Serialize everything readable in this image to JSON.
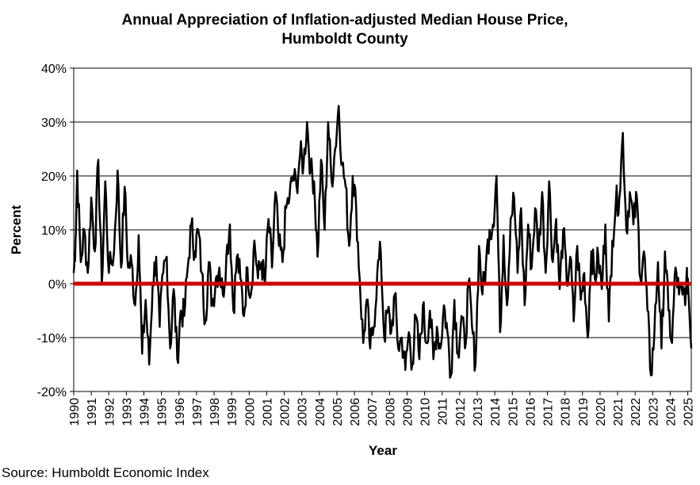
{
  "chart_data": {
    "type": "line",
    "title_line1": "Annual Appreciation of Inflation-adjusted Median House Price,",
    "title_line2": "Humboldt County",
    "xlabel": "Year",
    "ylabel": "Percent",
    "source": "Source: Humboldt Economic Index",
    "xlim": [
      1990,
      2025.2
    ],
    "ylim": [
      -20,
      40
    ],
    "y_ticks": [
      -20,
      -10,
      0,
      10,
      20,
      30,
      40
    ],
    "y_tick_labels": [
      "-20%",
      "-10%",
      "0%",
      "10%",
      "20%",
      "30%",
      "40%"
    ],
    "x_tick_labels": [
      "1990",
      "1991",
      "1992",
      "1993",
      "1994",
      "1995",
      "1996",
      "1997",
      "1998",
      "1999",
      "2000",
      "2001",
      "2002",
      "2003",
      "2004",
      "2005",
      "2006",
      "2007",
      "2008",
      "2009",
      "2010",
      "2011",
      "2012",
      "2013",
      "2014",
      "2015",
      "2016",
      "2017",
      "2018",
      "2019",
      "2020",
      "2021",
      "2022",
      "2023",
      "2024",
      "2025"
    ],
    "grid": true,
    "series_color": "#000000",
    "zero_line_color": "#cc0000",
    "anchors": [
      [
        1990.0,
        2
      ],
      [
        1990.1,
        8
      ],
      [
        1990.2,
        21
      ],
      [
        1990.4,
        4
      ],
      [
        1990.6,
        10
      ],
      [
        1990.8,
        2
      ],
      [
        1991.0,
        16
      ],
      [
        1991.2,
        6
      ],
      [
        1991.4,
        23
      ],
      [
        1991.6,
        0
      ],
      [
        1991.8,
        19
      ],
      [
        1992.0,
        2
      ],
      [
        1992.3,
        6
      ],
      [
        1992.5,
        21
      ],
      [
        1992.7,
        3
      ],
      [
        1992.9,
        18
      ],
      [
        1993.1,
        3
      ],
      [
        1993.3,
        4
      ],
      [
        1993.5,
        -4
      ],
      [
        1993.7,
        9
      ],
      [
        1993.9,
        -13
      ],
      [
        1994.1,
        -3
      ],
      [
        1994.3,
        -15
      ],
      [
        1994.5,
        0
      ],
      [
        1994.7,
        5
      ],
      [
        1994.9,
        -8
      ],
      [
        1995.1,
        2
      ],
      [
        1995.3,
        5
      ],
      [
        1995.5,
        -12
      ],
      [
        1995.7,
        -1
      ],
      [
        1995.9,
        -14
      ],
      [
        1996.1,
        -5
      ],
      [
        1996.3,
        -6
      ],
      [
        1996.5,
        3
      ],
      [
        1996.7,
        11
      ],
      [
        1996.9,
        6
      ],
      [
        1997.1,
        10
      ],
      [
        1997.3,
        2
      ],
      [
        1997.5,
        -7
      ],
      [
        1997.7,
        4
      ],
      [
        1997.9,
        -4
      ],
      [
        1998.1,
        1
      ],
      [
        1998.3,
        3
      ],
      [
        1998.5,
        -2
      ],
      [
        1998.7,
        5
      ],
      [
        1998.9,
        11
      ],
      [
        1999.1,
        -5
      ],
      [
        1999.3,
        5
      ],
      [
        1999.5,
        1
      ],
      [
        1999.7,
        -6
      ],
      [
        1999.9,
        3
      ],
      [
        2000.1,
        -2
      ],
      [
        2000.3,
        8
      ],
      [
        2000.5,
        1
      ],
      [
        2000.7,
        4
      ],
      [
        2000.9,
        0
      ],
      [
        2001.1,
        12
      ],
      [
        2001.3,
        3
      ],
      [
        2001.5,
        17
      ],
      [
        2001.7,
        7
      ],
      [
        2001.9,
        4
      ],
      [
        2002.1,
        14
      ],
      [
        2002.3,
        16
      ],
      [
        2002.5,
        20
      ],
      [
        2002.7,
        18
      ],
      [
        2002.9,
        24
      ],
      [
        2003.1,
        22
      ],
      [
        2003.3,
        30
      ],
      [
        2003.5,
        21
      ],
      [
        2003.7,
        19
      ],
      [
        2003.9,
        5
      ],
      [
        2004.1,
        23
      ],
      [
        2004.3,
        10
      ],
      [
        2004.5,
        30
      ],
      [
        2004.7,
        19
      ],
      [
        2004.9,
        25
      ],
      [
        2005.1,
        33
      ],
      [
        2005.3,
        22
      ],
      [
        2005.5,
        18
      ],
      [
        2005.7,
        7
      ],
      [
        2005.9,
        20
      ],
      [
        2006.1,
        14
      ],
      [
        2006.3,
        1
      ],
      [
        2006.5,
        -11
      ],
      [
        2006.7,
        -3
      ],
      [
        2006.9,
        -12
      ],
      [
        2007.1,
        -8
      ],
      [
        2007.3,
        2
      ],
      [
        2007.5,
        6
      ],
      [
        2007.7,
        -10
      ],
      [
        2007.9,
        -5
      ],
      [
        2008.1,
        -9
      ],
      [
        2008.3,
        -2
      ],
      [
        2008.5,
        -12
      ],
      [
        2008.7,
        -10
      ],
      [
        2008.9,
        -16
      ],
      [
        2009.1,
        -9
      ],
      [
        2009.3,
        -15
      ],
      [
        2009.5,
        -6
      ],
      [
        2009.7,
        -14
      ],
      [
        2009.9,
        -4
      ],
      [
        2010.1,
        -11
      ],
      [
        2010.3,
        -5
      ],
      [
        2010.5,
        -14
      ],
      [
        2010.7,
        -8
      ],
      [
        2010.9,
        -12
      ],
      [
        2011.1,
        -4
      ],
      [
        2011.3,
        -9
      ],
      [
        2011.5,
        -17
      ],
      [
        2011.7,
        -3
      ],
      [
        2011.9,
        -13
      ],
      [
        2012.1,
        -6
      ],
      [
        2012.3,
        -12
      ],
      [
        2012.5,
        0
      ],
      [
        2012.7,
        -8
      ],
      [
        2012.9,
        -15
      ],
      [
        2013.1,
        7
      ],
      [
        2013.3,
        -2
      ],
      [
        2013.5,
        4
      ],
      [
        2013.7,
        10
      ],
      [
        2013.9,
        11
      ],
      [
        2014.1,
        20
      ],
      [
        2014.3,
        -9
      ],
      [
        2014.5,
        9
      ],
      [
        2014.7,
        -4
      ],
      [
        2014.9,
        12
      ],
      [
        2015.1,
        16
      ],
      [
        2015.3,
        2
      ],
      [
        2015.5,
        14
      ],
      [
        2015.7,
        -4
      ],
      [
        2015.9,
        11
      ],
      [
        2016.1,
        3
      ],
      [
        2016.3,
        14
      ],
      [
        2016.5,
        6
      ],
      [
        2016.7,
        17
      ],
      [
        2016.9,
        2
      ],
      [
        2017.1,
        19
      ],
      [
        2017.3,
        4
      ],
      [
        2017.5,
        12
      ],
      [
        2017.7,
        -1
      ],
      [
        2017.9,
        10
      ],
      [
        2018.1,
        0
      ],
      [
        2018.3,
        5
      ],
      [
        2018.5,
        -7
      ],
      [
        2018.7,
        7
      ],
      [
        2018.9,
        -3
      ],
      [
        2019.1,
        2
      ],
      [
        2019.3,
        -10
      ],
      [
        2019.5,
        6
      ],
      [
        2019.7,
        1
      ],
      [
        2019.9,
        5
      ],
      [
        2020.1,
        -1
      ],
      [
        2020.3,
        11
      ],
      [
        2020.5,
        -7
      ],
      [
        2020.7,
        8
      ],
      [
        2020.9,
        15
      ],
      [
        2021.1,
        16
      ],
      [
        2021.3,
        28
      ],
      [
        2021.5,
        10
      ],
      [
        2021.7,
        17
      ],
      [
        2021.9,
        11
      ],
      [
        2022.1,
        16
      ],
      [
        2022.3,
        1
      ],
      [
        2022.5,
        6
      ],
      [
        2022.7,
        -5
      ],
      [
        2022.9,
        -17
      ],
      [
        2023.1,
        -9
      ],
      [
        2023.3,
        4
      ],
      [
        2023.5,
        -12
      ],
      [
        2023.7,
        6
      ],
      [
        2023.9,
        -5
      ],
      [
        2024.1,
        -11
      ],
      [
        2024.3,
        3
      ],
      [
        2024.5,
        -2
      ],
      [
        2024.7,
        -2
      ],
      [
        2024.9,
        -1
      ],
      [
        2025.0,
        1
      ],
      [
        2025.2,
        -12
      ]
    ]
  }
}
